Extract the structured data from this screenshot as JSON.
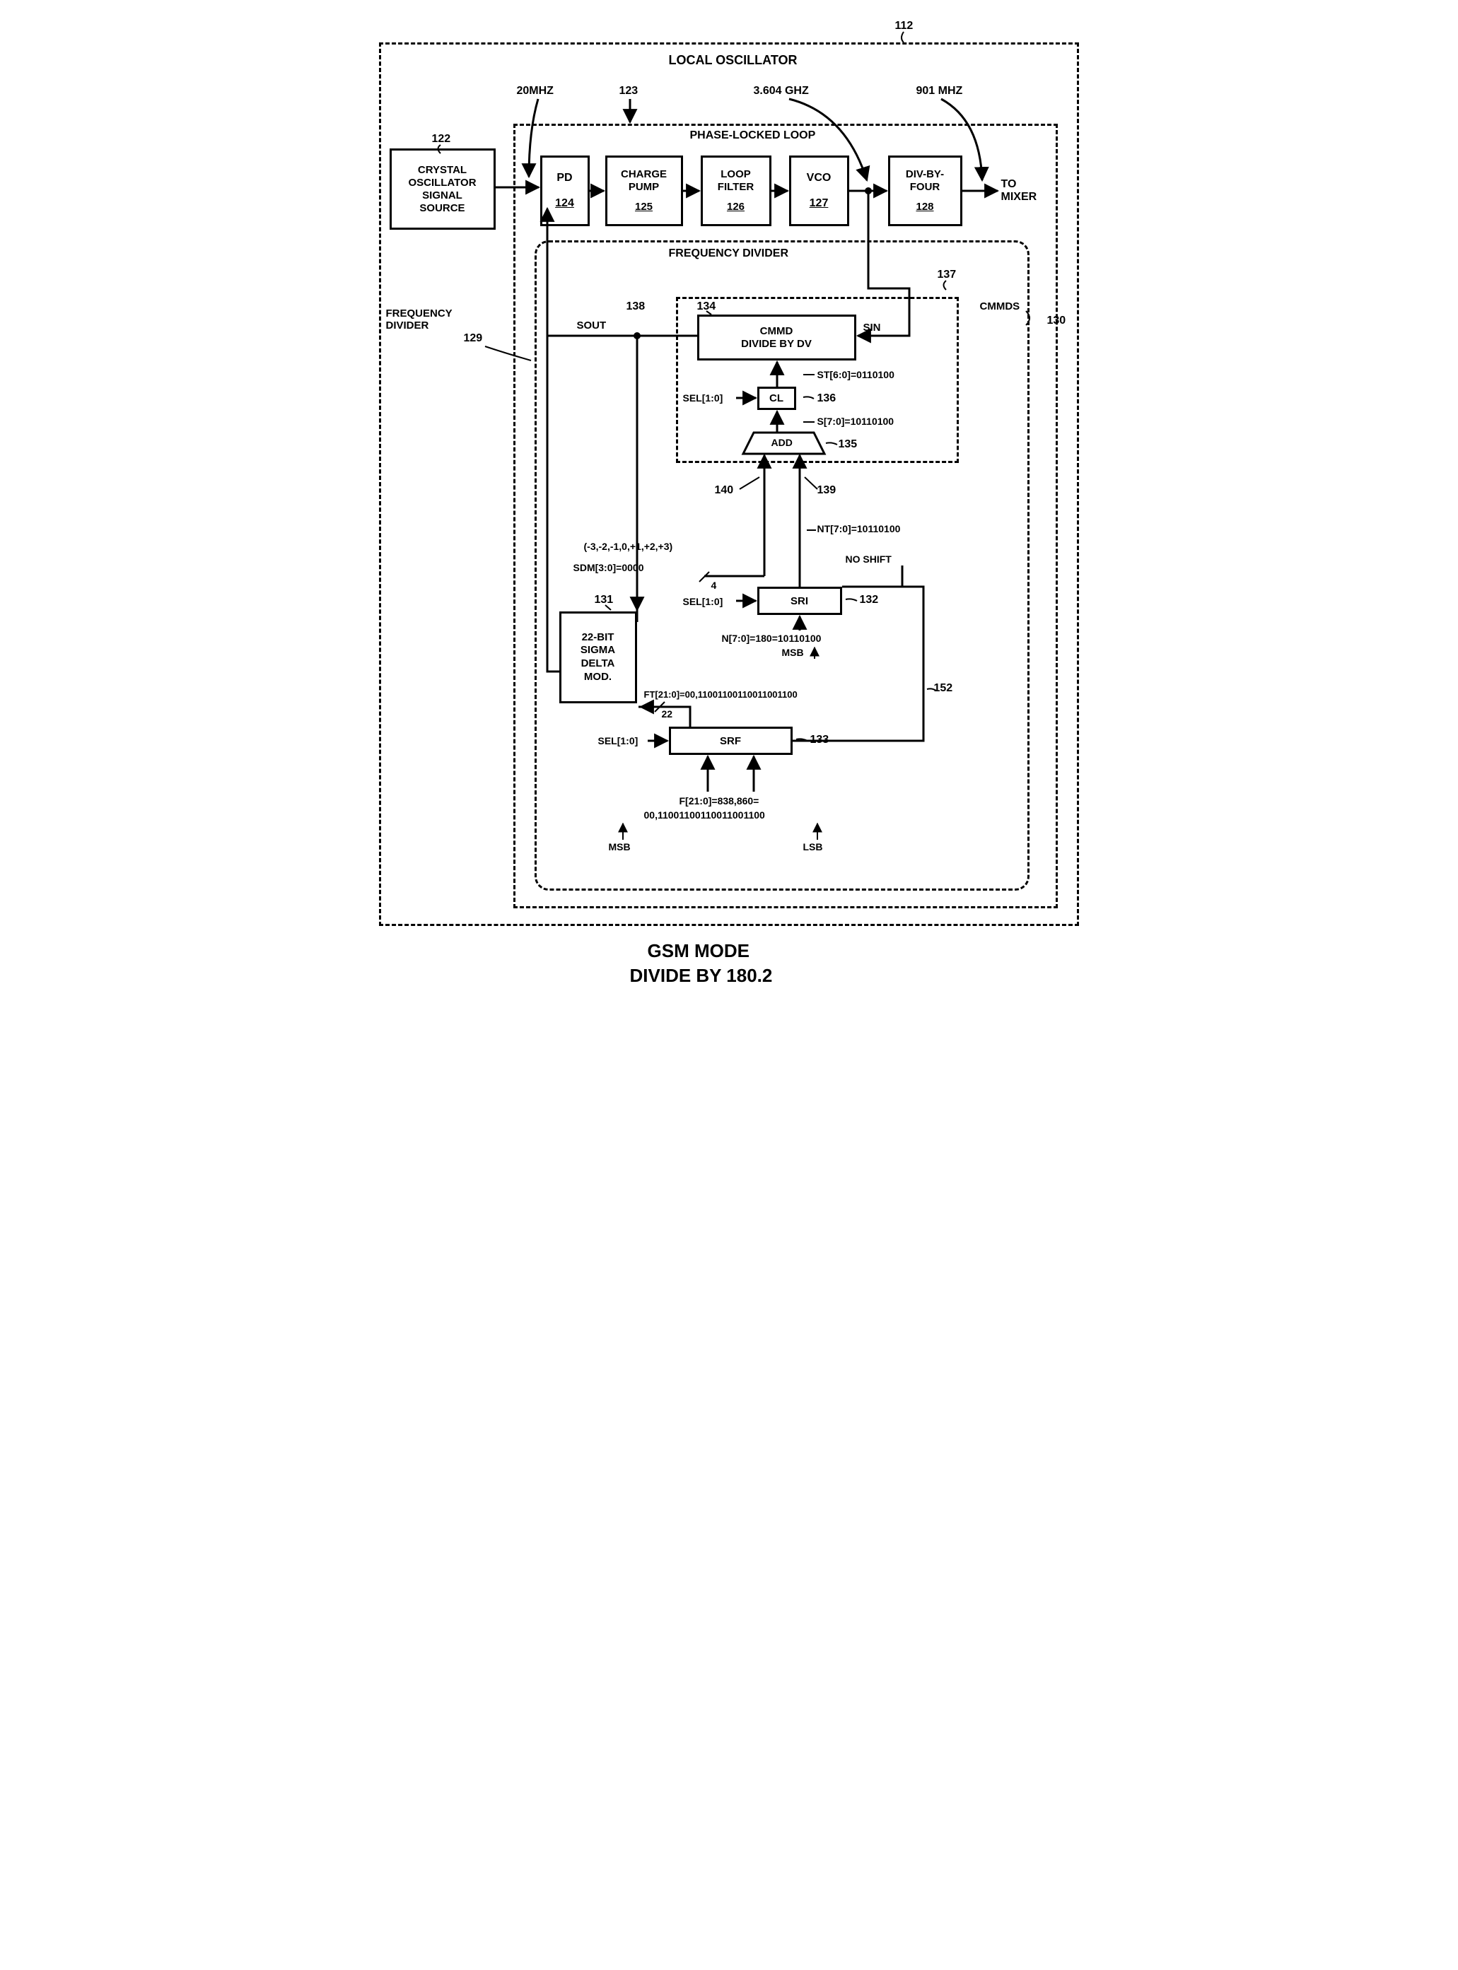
{
  "title_top": "LOCAL OSCILLATOR",
  "title_pll": "PHASE-LOCKED LOOP",
  "title_fd": "FREQUENCY DIVIDER",
  "labels": {
    "ref112": "112",
    "freq20": "20MHZ",
    "ref123": "123",
    "freq3604": "3.604 GHZ",
    "freq901": "901 MHZ",
    "ref122": "122",
    "crystal": "CRYSTAL\nOSCILLATOR\nSIGNAL\nSOURCE",
    "pd": "PD",
    "pd_ref": "124",
    "cp": "CHARGE\nPUMP",
    "cp_ref": "125",
    "lf": "LOOP\nFILTER",
    "lf_ref": "126",
    "vco": "VCO",
    "vco_ref": "127",
    "div4": "DIV-BY-\nFOUR",
    "div4_ref": "128",
    "tomixer": "TO\nMIXER",
    "ref137": "137",
    "freqdiv_lbl": "FREQUENCY\nDIVIDER",
    "ref129": "129",
    "ref138": "138",
    "sout": "SOUT",
    "ref134": "134",
    "cmmd_box": "CMMD\nDIVIDE BY DV",
    "sin": "SIN",
    "cmmds": "CMMDS",
    "ref130": "130",
    "st": "ST[6:0]=0110100",
    "sel10_a": "SEL[1:0]",
    "cl": "CL",
    "ref136": "136",
    "s70": "S[7:0]=10110100",
    "add": "ADD",
    "ref135": "135",
    "ref140": "140",
    "ref139": "139",
    "nt70": "NT[7:0]=10110100",
    "sdm_vals": "(-3,-2,-1,0,+1,+2,+3)",
    "sdm30": "SDM[3:0]=0000",
    "noshift": "NO SHIFT",
    "sel10_b": "SEL[1:0]",
    "sri": "SRI",
    "ref132": "132",
    "ref131": "131",
    "sigma": "22-BIT\nSIGMA\nDELTA\nMOD.",
    "n70": "N[7:0]=180=10110100",
    "msb1": "MSB",
    "ft210": "FT[21:0]=00,11001100110011001100",
    "slash22": "22",
    "slash4": "4",
    "sel10_c": "SEL[1:0]",
    "srf": "SRF",
    "ref133": "133",
    "ref152": "152",
    "f210a": "F[21:0]=838,860=",
    "f210b": "00,11001100110011001100",
    "msb2": "MSB",
    "lsb": "LSB",
    "footer1": "GSM MODE",
    "footer2": "DIVIDE BY 180.2"
  },
  "style": {
    "font_size_normal": 16,
    "font_size_small": 14,
    "font_size_footer": 24,
    "stroke": "#000000",
    "stroke_width": 3,
    "bg": "#ffffff"
  }
}
